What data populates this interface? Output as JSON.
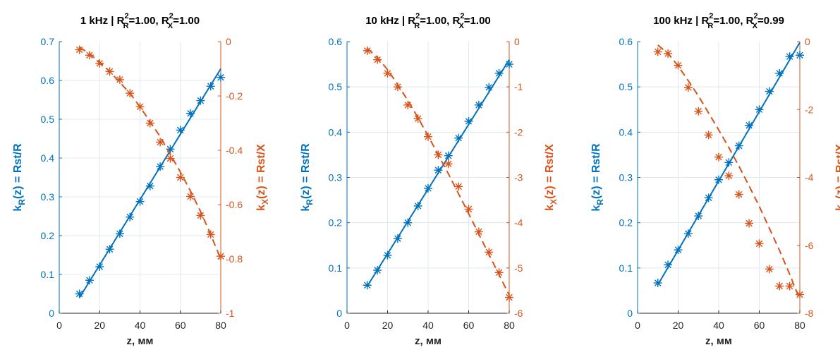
{
  "colors": {
    "left_axis": "#0072BD",
    "right_axis": "#D95319",
    "grid": "#dfe8f0",
    "axis_x": "#262626"
  },
  "chart_data": [
    {
      "type": "line",
      "title": "1 kHz | R_R^2=1.00, R_X^2=1.00",
      "title_parts": {
        "prefix": "1 kHz | R",
        "r_sub": "R",
        "r_val": "=1.00, R",
        "x_sub": "X",
        "x_val": "=1.00",
        "sup": "2"
      },
      "xlabel": "z, мм",
      "ylabel_left": {
        "main": "k",
        "sub": "R",
        "rest": "(z) = Rst/R"
      },
      "ylabel_right": {
        "main": "k",
        "sub": "X",
        "rest": "(z) = Rst/X"
      },
      "grid": true,
      "xlim": [
        0,
        80
      ],
      "xticks": [
        0,
        20,
        40,
        60,
        80
      ],
      "ylim_left": [
        0,
        0.7
      ],
      "yticks_left": [
        0,
        0.1,
        0.2,
        0.3,
        0.4,
        0.5,
        0.6,
        0.7
      ],
      "yticklabels_left": [
        "0",
        "0.1",
        "0.2",
        "0.3",
        "0.4",
        "0.5",
        "0.6",
        "0.7"
      ],
      "ylim_right": [
        -1,
        0
      ],
      "yticks_right": [
        -1,
        -0.8,
        -0.6,
        -0.4,
        -0.2,
        0
      ],
      "yticklabels_right": [
        "-1",
        "-0.8",
        "-0.6",
        "-0.4",
        "-0.2",
        "0"
      ],
      "x": [
        10,
        15,
        20,
        25,
        30,
        35,
        40,
        45,
        50,
        55,
        60,
        65,
        70,
        75,
        80
      ],
      "series": [
        {
          "axis": "left",
          "style": "markers",
          "values": [
            0.05,
            0.085,
            0.12,
            0.165,
            0.205,
            0.248,
            0.288,
            0.328,
            0.378,
            0.423,
            0.472,
            0.515,
            0.548,
            0.585,
            0.608
          ]
        },
        {
          "axis": "left",
          "style": "fit",
          "x": [
            10,
            80
          ],
          "values": [
            0.04,
            0.63
          ]
        },
        {
          "axis": "right",
          "style": "markers",
          "values": [
            -0.03,
            -0.05,
            -0.08,
            -0.11,
            -0.14,
            -0.19,
            -0.24,
            -0.3,
            -0.37,
            -0.43,
            -0.5,
            -0.57,
            -0.64,
            -0.71,
            -0.79
          ]
        },
        {
          "axis": "right",
          "style": "fit",
          "values": [
            -0.02,
            -0.045,
            -0.075,
            -0.11,
            -0.15,
            -0.19,
            -0.24,
            -0.295,
            -0.35,
            -0.415,
            -0.48,
            -0.55,
            -0.625,
            -0.71,
            -0.8
          ]
        }
      ]
    },
    {
      "type": "line",
      "title": "10 kHz | R_R^2=1.00, R_X^2=1.00",
      "title_parts": {
        "prefix": "10 kHz | R",
        "r_sub": "R",
        "r_val": "=1.00, R",
        "x_sub": "X",
        "x_val": "=1.00",
        "sup": "2"
      },
      "xlabel": "z, мм",
      "ylabel_left": {
        "main": "k",
        "sub": "R",
        "rest": "(z) = Rst/R"
      },
      "ylabel_right": {
        "main": "k",
        "sub": "X",
        "rest": "(z) = Rst/X"
      },
      "grid": true,
      "xlim": [
        0,
        80
      ],
      "xticks": [
        0,
        20,
        40,
        60,
        80
      ],
      "ylim_left": [
        0,
        0.6
      ],
      "yticks_left": [
        0,
        0.1,
        0.2,
        0.3,
        0.4,
        0.5,
        0.6
      ],
      "yticklabels_left": [
        "0",
        "0.1",
        "0.2",
        "0.3",
        "0.4",
        "0.5",
        "0.6"
      ],
      "ylim_right": [
        -6,
        0
      ],
      "yticks_right": [
        -6,
        -5,
        -4,
        -3,
        -2,
        -1,
        0
      ],
      "yticklabels_right": [
        "-6",
        "-5",
        "-4",
        "-3",
        "-2",
        "-1",
        "0"
      ],
      "x": [
        10,
        15,
        20,
        25,
        30,
        35,
        40,
        45,
        50,
        55,
        60,
        65,
        70,
        75,
        80
      ],
      "series": [
        {
          "axis": "left",
          "style": "markers",
          "values": [
            0.062,
            0.095,
            0.128,
            0.165,
            0.2,
            0.237,
            0.276,
            0.316,
            0.348,
            0.387,
            0.424,
            0.46,
            0.499,
            0.53,
            0.55
          ]
        },
        {
          "axis": "left",
          "style": "fit",
          "x": [
            10,
            80
          ],
          "values": [
            0.06,
            0.56
          ]
        },
        {
          "axis": "right",
          "style": "markers",
          "values": [
            -0.2,
            -0.4,
            -0.7,
            -1.0,
            -1.4,
            -1.7,
            -2.1,
            -2.5,
            -2.7,
            -3.2,
            -3.7,
            -4.2,
            -4.65,
            -5.1,
            -5.65
          ]
        },
        {
          "axis": "right",
          "style": "fit",
          "values": [
            -0.15,
            -0.35,
            -0.62,
            -0.95,
            -1.3,
            -1.68,
            -2.08,
            -2.5,
            -2.92,
            -3.36,
            -3.8,
            -4.25,
            -4.7,
            -5.15,
            -5.6
          ]
        }
      ]
    },
    {
      "type": "line",
      "title": "100 kHz | R_R^2=1.00, R_X^2=0.99",
      "title_parts": {
        "prefix": "100 kHz | R",
        "r_sub": "R",
        "r_val": "=1.00, R",
        "x_sub": "X",
        "x_val": "=0.99",
        "sup": "2"
      },
      "xlabel": "z, мм",
      "ylabel_left": {
        "main": "k",
        "sub": "R",
        "rest": "(z) = Rst/R"
      },
      "ylabel_right": {
        "main": "k",
        "sub": "X",
        "rest": "(z) = Rst/X"
      },
      "grid": true,
      "xlim": [
        0,
        80
      ],
      "xticks": [
        0,
        20,
        40,
        60,
        80
      ],
      "ylim_left": [
        0,
        0.6
      ],
      "yticks_left": [
        0,
        0.1,
        0.2,
        0.3,
        0.4,
        0.5,
        0.6
      ],
      "yticklabels_left": [
        "0",
        "0.1",
        "0.2",
        "0.3",
        "0.4",
        "0.5",
        "0.6"
      ],
      "ylim_right": [
        -8,
        0
      ],
      "yticks_right": [
        -8,
        -6,
        -4,
        -2,
        0
      ],
      "yticklabels_right": [
        "-8",
        "-6",
        "-4",
        "-2",
        "0"
      ],
      "x": [
        10,
        15,
        20,
        25,
        30,
        35,
        40,
        45,
        50,
        55,
        60,
        65,
        70,
        75,
        80
      ],
      "series": [
        {
          "axis": "left",
          "style": "markers",
          "values": [
            0.067,
            0.107,
            0.14,
            0.176,
            0.215,
            0.255,
            0.295,
            0.333,
            0.37,
            0.415,
            0.45,
            0.49,
            0.53,
            0.567,
            0.57
          ]
        },
        {
          "axis": "left",
          "style": "fit",
          "x": [
            10,
            80
          ],
          "values": [
            0.063,
            0.598
          ]
        },
        {
          "axis": "right",
          "style": "markers",
          "values": [
            -0.3,
            -0.35,
            -0.7,
            -1.35,
            -2.05,
            -2.75,
            -3.4,
            -3.95,
            -4.5,
            -5.35,
            -5.95,
            -6.7,
            -7.2,
            -7.2,
            -7.45
          ]
        },
        {
          "axis": "right",
          "style": "fit",
          "values": [
            -0.1,
            -0.35,
            -0.72,
            -1.15,
            -1.6,
            -2.1,
            -2.6,
            -3.12,
            -3.67,
            -4.25,
            -4.85,
            -5.5,
            -6.15,
            -6.85,
            -7.6
          ]
        }
      ]
    }
  ]
}
